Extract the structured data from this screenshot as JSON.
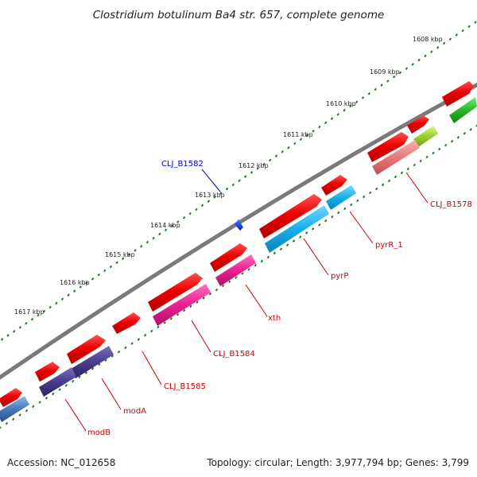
{
  "header": {
    "title": "Clostridium botulinum Ba4 str. 657, complete genome"
  },
  "footer": {
    "accession": "Accession: NC_012658",
    "topology": "Topology: circular; Length: 3,977,794 bp; Genes: 3,799"
  },
  "ticks": [
    "1608 kbp",
    "1609 kbp",
    "1610 kbp",
    "1611 kbp",
    "1612 kbp",
    "1613 kbp",
    "1614 kbp",
    "1615 kbp",
    "1616 kbp",
    "1617 kbp"
  ],
  "genes": [
    {
      "label": "CLJ_B1582",
      "color": "#0000cc"
    },
    {
      "label": "CLJ_B1578",
      "color": "#cc0000"
    },
    {
      "label": "pyrR_1",
      "color": "#cc0000"
    },
    {
      "label": "pyrP",
      "color": "#cc0000"
    },
    {
      "label": "xth",
      "color": "#cc0000"
    },
    {
      "label": "CLJ_B1584",
      "color": "#cc0000"
    },
    {
      "label": "CLJ_B1585",
      "color": "#cc0000"
    },
    {
      "label": "modA",
      "color": "#cc0000"
    },
    {
      "label": "modB",
      "color": "#cc0000"
    }
  ],
  "colors": {
    "backbone": "#7a7a7a",
    "tick_dots": "#1e7a1e",
    "cds": "#ee1111",
    "blue_feature": "#1a5ccc",
    "cyan_feature": "#1ab0e8",
    "magenta_feature": "#e8238f",
    "indigo_feature": "#4a3c8c",
    "salmon_feature": "#e87878",
    "lime_feature": "#9ad030",
    "green_feature": "#2ab82a",
    "steelblue_feature": "#4a7ab8"
  }
}
